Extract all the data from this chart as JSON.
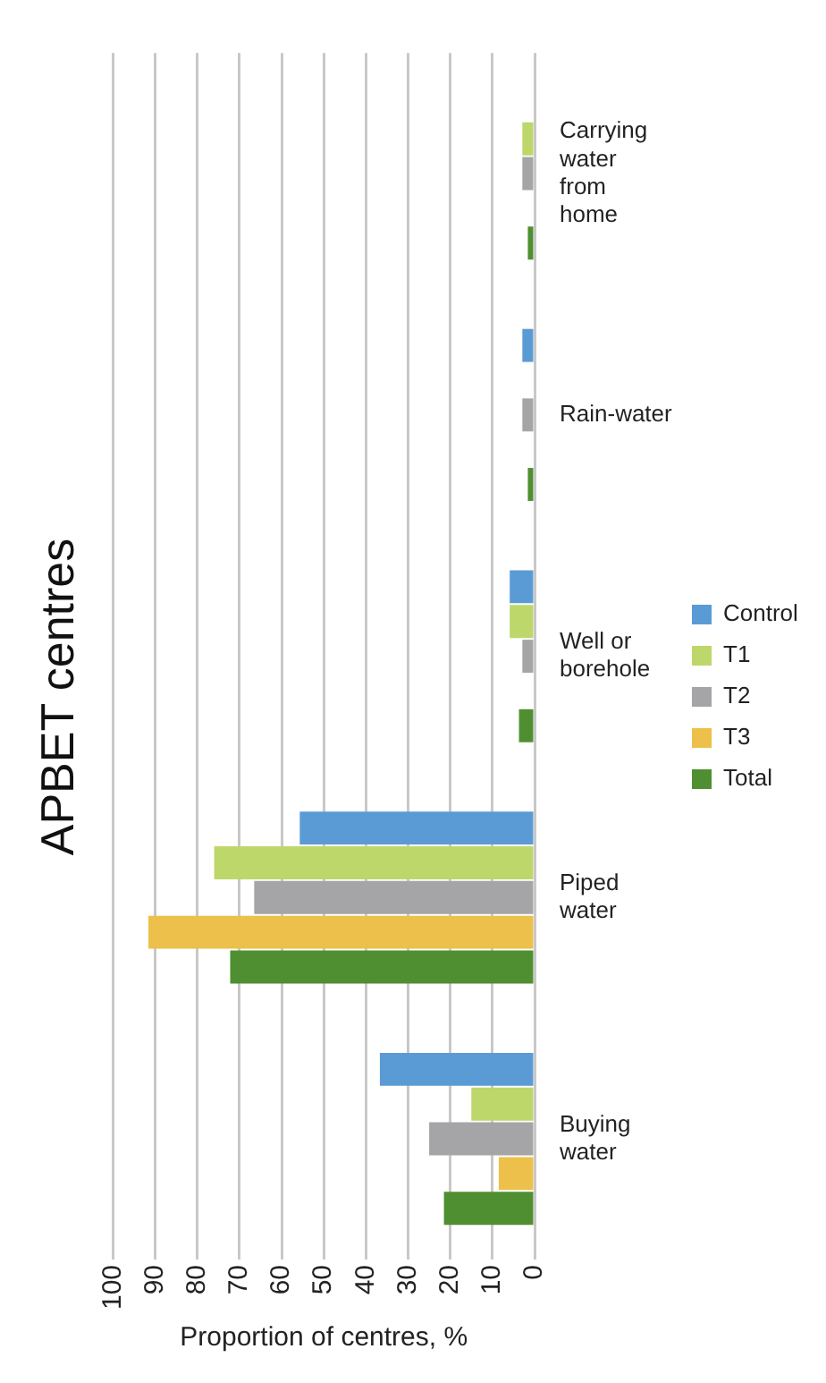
{
  "chart_data": {
    "type": "bar",
    "orientation": "horizontal",
    "title": "APBET centres",
    "xlabel": "Proportion of centres, %",
    "categories": [
      "Carrying water from home",
      "Rain-water",
      "Well or borehole",
      "Piped water",
      "Buying water"
    ],
    "series": [
      {
        "name": "Control",
        "color": "#5b9bd5",
        "values": [
          0,
          2.9,
          5.9,
          55.7,
          36.7
        ]
      },
      {
        "name": "T1",
        "color": "#bdd76a",
        "values": [
          2.9,
          0,
          5.9,
          76,
          15
        ]
      },
      {
        "name": "T2",
        "color": "#a5a5a8",
        "values": [
          2.9,
          2.9,
          2.9,
          66.5,
          25
        ]
      },
      {
        "name": "T3",
        "color": "#ecc04a",
        "values": [
          0,
          0,
          0,
          91.6,
          8.5
        ]
      },
      {
        "name": "Total",
        "color": "#4f8f31",
        "values": [
          1.6,
          1.6,
          3.7,
          72.2,
          21.5
        ]
      }
    ],
    "xlim": [
      100,
      0
    ],
    "xticks": [
      0,
      10,
      20,
      30,
      40,
      50,
      60,
      70,
      80,
      90,
      100
    ],
    "grid": "x",
    "legend": "right"
  }
}
